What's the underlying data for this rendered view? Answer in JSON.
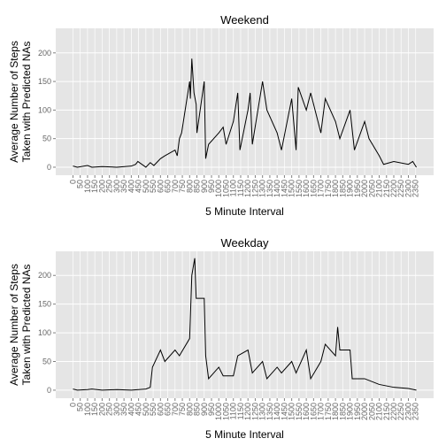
{
  "chart_data": [
    {
      "type": "line",
      "title": "Weekend",
      "xlabel": "5 Minute Interval",
      "ylabel": [
        "Average Number of Steps",
        "Taken with Predicted NAs"
      ],
      "x": [
        0,
        30,
        100,
        130,
        200,
        300,
        400,
        430,
        445,
        500,
        530,
        555,
        600,
        630,
        700,
        715,
        730,
        745,
        800,
        805,
        815,
        830,
        845,
        850,
        900,
        910,
        930,
        1000,
        1030,
        1050,
        1100,
        1130,
        1145,
        1200,
        1215,
        1230,
        1300,
        1330,
        1400,
        1430,
        1500,
        1530,
        1545,
        1600,
        1630,
        1700,
        1730,
        1800,
        1830,
        1900,
        1930,
        2000,
        2030,
        2100,
        2130,
        2200,
        2300,
        2330,
        2355
      ],
      "series": [
        {
          "name": "Weekend",
          "color": "#000000",
          "values": [
            2,
            0,
            3,
            0,
            1,
            0,
            2,
            5,
            10,
            0,
            8,
            3,
            15,
            20,
            30,
            20,
            50,
            60,
            150,
            120,
            190,
            130,
            110,
            60,
            150,
            15,
            40,
            60,
            70,
            40,
            80,
            130,
            30,
            100,
            130,
            40,
            150,
            100,
            60,
            30,
            120,
            30,
            140,
            100,
            130,
            60,
            120,
            80,
            50,
            100,
            30,
            80,
            50,
            20,
            5,
            10,
            5,
            10,
            0
          ]
        }
      ],
      "xlim": [
        -118,
        2473
      ],
      "ylim": [
        -14,
        243
      ],
      "xticks": [
        0,
        50,
        100,
        150,
        200,
        250,
        300,
        350,
        400,
        450,
        500,
        550,
        600,
        650,
        700,
        750,
        800,
        850,
        900,
        950,
        1000,
        1050,
        1100,
        1150,
        1200,
        1250,
        1300,
        1350,
        1400,
        1450,
        1500,
        1550,
        1600,
        1650,
        1700,
        1750,
        1800,
        1850,
        1900,
        1950,
        2000,
        2050,
        2100,
        2150,
        2200,
        2250,
        2300,
        2350
      ],
      "yticks": [
        0,
        50,
        100,
        150,
        200
      ],
      "grid": true
    },
    {
      "type": "line",
      "title": "Weekday",
      "xlabel": "5 Minute Interval",
      "ylabel": [
        "Average Number of Steps",
        "Taken with Predicted NAs"
      ],
      "x": [
        0,
        30,
        100,
        130,
        200,
        300,
        400,
        500,
        530,
        545,
        600,
        630,
        700,
        730,
        800,
        815,
        835,
        845,
        900,
        910,
        930,
        1000,
        1030,
        1100,
        1130,
        1200,
        1230,
        1300,
        1330,
        1400,
        1430,
        1500,
        1530,
        1600,
        1630,
        1700,
        1730,
        1800,
        1815,
        1830,
        1900,
        1915,
        2000,
        2100,
        2200,
        2300,
        2355
      ],
      "series": [
        {
          "name": "Weekday",
          "color": "#000000",
          "values": [
            2,
            0,
            1,
            2,
            0,
            1,
            0,
            2,
            5,
            40,
            70,
            50,
            70,
            60,
            90,
            200,
            230,
            160,
            160,
            60,
            20,
            40,
            25,
            25,
            60,
            70,
            30,
            50,
            20,
            40,
            30,
            50,
            30,
            70,
            20,
            50,
            80,
            60,
            110,
            70,
            70,
            20,
            20,
            10,
            5,
            3,
            0
          ]
        }
      ],
      "xlim": [
        -118,
        2473
      ],
      "ylim": [
        -14,
        242
      ],
      "xticks": [
        0,
        50,
        100,
        150,
        200,
        250,
        300,
        350,
        400,
        450,
        500,
        550,
        600,
        650,
        700,
        750,
        800,
        850,
        900,
        950,
        1000,
        1050,
        1100,
        1150,
        1200,
        1250,
        1300,
        1350,
        1400,
        1450,
        1500,
        1550,
        1600,
        1650,
        1700,
        1750,
        1800,
        1850,
        1900,
        1950,
        2000,
        2050,
        2100,
        2150,
        2200,
        2250,
        2300,
        2350
      ],
      "yticks": [
        0,
        50,
        100,
        150,
        200
      ],
      "grid": true
    }
  ]
}
